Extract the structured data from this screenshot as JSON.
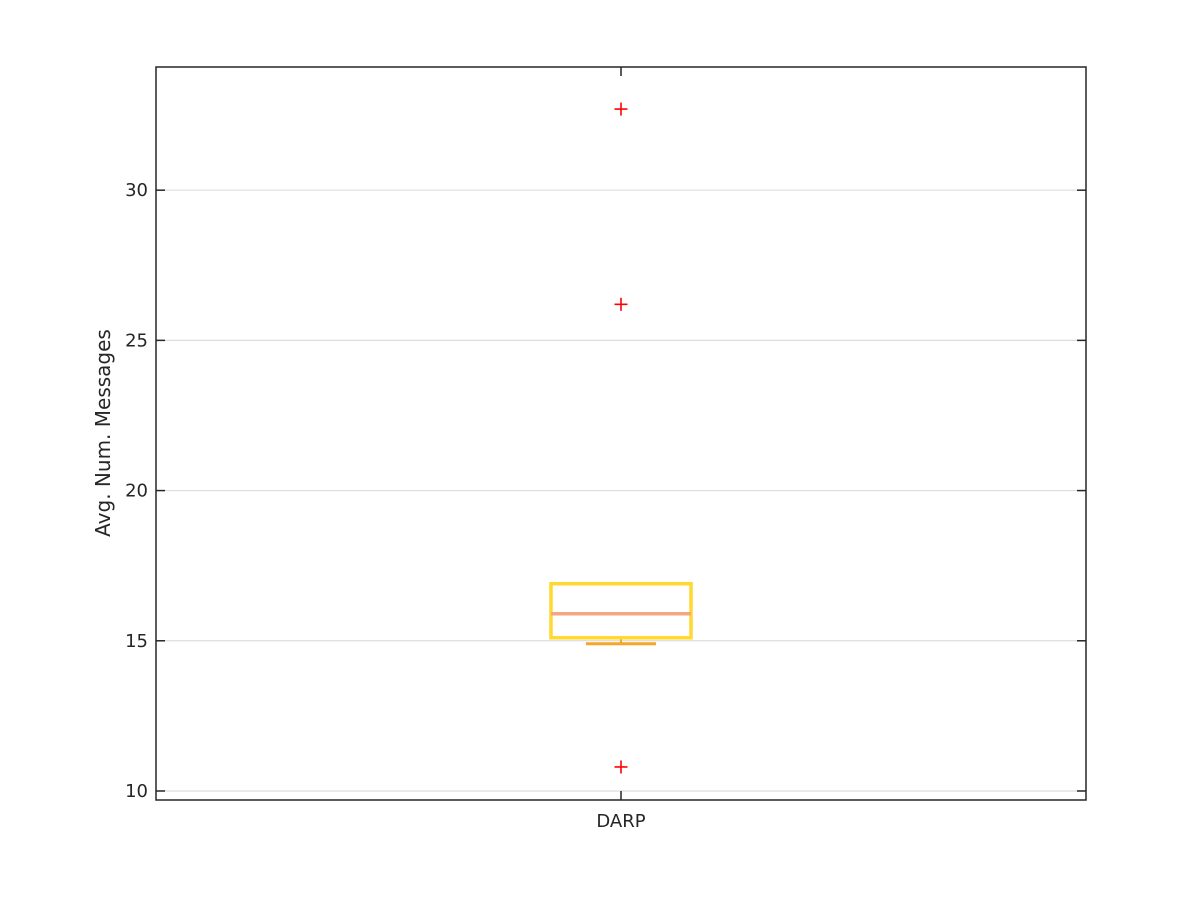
{
  "chart_data": {
    "type": "box",
    "categories": [
      "DARP"
    ],
    "xlabel": "",
    "ylabel": "Avg. Num. Messages",
    "ylim": [
      9.7,
      34.1
    ],
    "yticks": [
      10,
      15,
      20,
      25,
      30
    ],
    "grid": "y",
    "boxes": [
      {
        "category": "DARP",
        "q1": 15.1,
        "median": 15.9,
        "q3": 16.9,
        "whisker_low": 14.9,
        "whisker_high": 16.9,
        "outliers": [
          32.7,
          26.2,
          10.8
        ]
      }
    ],
    "colors": {
      "box": "#FFD92F",
      "median": "#F4A582",
      "whisker": "#F5A623",
      "outlier": "#FF0000",
      "grid": "#DDDDDD",
      "axis": "#262626"
    }
  }
}
